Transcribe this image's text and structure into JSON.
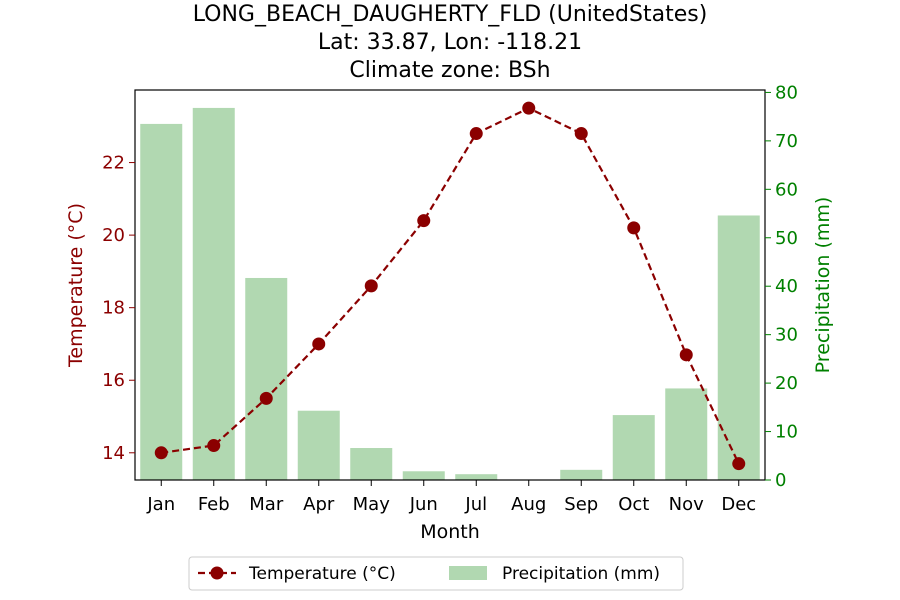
{
  "chart_data": {
    "type": "bar+line",
    "title_lines": [
      "LONG_BEACH_DAUGHERTY_FLD (UnitedStates)",
      "Lat: 33.87, Lon: -118.21",
      "Climate zone: BSh"
    ],
    "xlabel": "Month",
    "ylabel_left": "Temperature (°C)",
    "ylabel_right": "Precipitation (mm)",
    "categories": [
      "Jan",
      "Feb",
      "Mar",
      "Apr",
      "May",
      "Jun",
      "Jul",
      "Aug",
      "Sep",
      "Oct",
      "Nov",
      "Dec"
    ],
    "series": [
      {
        "name": "Temperature (°C)",
        "kind": "line",
        "axis": "left",
        "style": "dashed-with-circle-markers",
        "color": "#8b0000",
        "values": [
          14.0,
          14.2,
          15.5,
          17.0,
          18.6,
          20.4,
          22.8,
          23.5,
          22.8,
          20.2,
          16.7,
          13.7
        ]
      },
      {
        "name": "Precipitation (mm)",
        "kind": "bar",
        "axis": "right",
        "color": "#b1d8b1",
        "values": [
          73.5,
          76.8,
          41.7,
          14.3,
          6.6,
          1.8,
          1.2,
          0.0,
          2.1,
          13.4,
          18.9,
          54.6
        ]
      }
    ],
    "ylim_left": [
      13.25,
      24.0
    ],
    "yticks_left": [
      "14",
      "16",
      "18",
      "20",
      "22"
    ],
    "ylim_right": [
      0,
      80.5
    ],
    "yticks_right": [
      "0",
      "10",
      "20",
      "30",
      "40",
      "50",
      "60",
      "70",
      "80"
    ],
    "left_axis_color": "#8b0000",
    "right_axis_color": "#008000",
    "legend_position": "bottom-center",
    "grid": false
  }
}
